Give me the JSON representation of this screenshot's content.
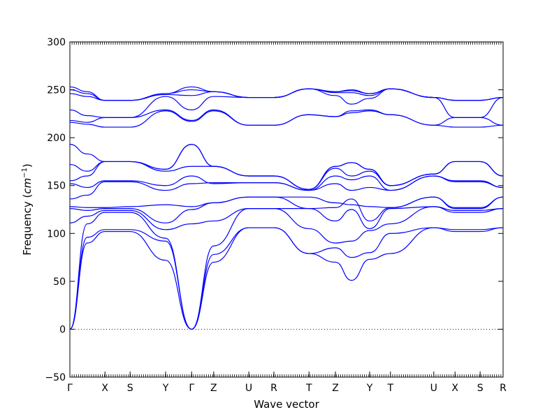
{
  "chart_data": {
    "type": "line",
    "title": "",
    "xlabel": "Wave vector",
    "ylabel": "Frequency",
    "ylabel_unit": "cm",
    "ylabel_unit_exp": "−1",
    "ylim": [
      -50,
      300
    ],
    "yticks": [
      -50,
      0,
      50,
      100,
      150,
      200,
      250,
      300
    ],
    "ytick_labels": [
      "−50",
      "0",
      "50",
      "100",
      "150",
      "200",
      "250",
      "300"
    ],
    "xlim": [
      0,
      1
    ],
    "grid": false,
    "line_color": "#0000ff",
    "zero_line_style": "dotted",
    "high_symmetry_points": [
      {
        "label": "Γ",
        "x": 0.0
      },
      {
        "label": "X",
        "x": 0.081
      },
      {
        "label": "S",
        "x": 0.139
      },
      {
        "label": "Y",
        "x": 0.221
      },
      {
        "label": "Γ",
        "x": 0.281
      },
      {
        "label": "Z",
        "x": 0.332
      },
      {
        "label": "U",
        "x": 0.413
      },
      {
        "label": "R",
        "x": 0.471
      },
      {
        "label": "T",
        "x": 0.552
      },
      {
        "label": "Z",
        "x": 0.613
      },
      {
        "label": "Y",
        "x": 0.692
      },
      {
        "label": "T",
        "x": 0.74
      },
      {
        "label": "U",
        "x": 0.84
      },
      {
        "label": "X",
        "x": 0.889
      },
      {
        "label": "S",
        "x": 0.947
      },
      {
        "label": "R",
        "x": 1.0
      }
    ],
    "series": [
      {
        "x": [
          0,
          0.04,
          0.081,
          0.139,
          0.221,
          0.281,
          0.332,
          0.413,
          0.471,
          0.552,
          0.613,
          0.65,
          0.692,
          0.74,
          0.84,
          0.889,
          0.947,
          1.0
        ],
        "values": [
          0,
          90,
          102,
          102,
          72,
          0,
          70,
          106,
          106,
          79,
          70,
          51,
          73,
          79,
          106,
          102,
          102,
          106
        ]
      },
      {
        "x": [
          0,
          0.04,
          0.081,
          0.139,
          0.221,
          0.281,
          0.332,
          0.413,
          0.471,
          0.552,
          0.613,
          0.65,
          0.692,
          0.74,
          0.84,
          0.889,
          0.947,
          1.0
        ],
        "values": [
          0,
          96,
          104,
          104,
          92,
          0,
          78,
          106,
          106,
          79,
          85,
          75,
          80,
          100,
          106,
          104,
          104,
          106
        ]
      },
      {
        "x": [
          0,
          0.04,
          0.081,
          0.139,
          0.221,
          0.281,
          0.332,
          0.413,
          0.471,
          0.552,
          0.613,
          0.65,
          0.692,
          0.74,
          0.84,
          0.889,
          0.947,
          1.0
        ],
        "values": [
          0,
          110,
          122,
          122,
          95,
          0,
          87,
          126,
          126,
          105,
          90,
          92,
          103,
          110,
          128,
          122,
          122,
          126
        ]
      },
      {
        "x": [
          0,
          0.04,
          0.081,
          0.139,
          0.221,
          0.281,
          0.332,
          0.413,
          0.471,
          0.552,
          0.613,
          0.65,
          0.692,
          0.74,
          0.84,
          0.889,
          0.947,
          1.0
        ],
        "values": [
          111,
          118,
          124,
          124,
          104,
          110,
          113,
          126,
          126,
          126,
          113,
          125,
          105,
          126,
          128,
          124,
          124,
          126
        ]
      },
      {
        "x": [
          0,
          0.04,
          0.081,
          0.139,
          0.221,
          0.281,
          0.332,
          0.413,
          0.471,
          0.552,
          0.613,
          0.65,
          0.692,
          0.74,
          0.84,
          0.889,
          0.947,
          1.0
        ],
        "values": [
          126,
          124,
          126,
          126,
          111,
          125,
          132,
          138,
          138,
          126,
          127,
          136,
          113,
          127,
          138,
          126,
          126,
          138
        ]
      },
      {
        "x": [
          0,
          0.04,
          0.081,
          0.139,
          0.221,
          0.281,
          0.332,
          0.413,
          0.471,
          0.552,
          0.613,
          0.65,
          0.692,
          0.74,
          0.84,
          0.889,
          0.947,
          1.0
        ],
        "values": [
          128,
          127,
          127,
          128,
          130,
          128,
          132,
          138,
          138,
          138,
          132,
          130,
          128,
          127,
          138,
          127,
          127,
          138
        ]
      },
      {
        "x": [
          0,
          0.04,
          0.081,
          0.139,
          0.221,
          0.281,
          0.332,
          0.413,
          0.471,
          0.552,
          0.613,
          0.65,
          0.692,
          0.74,
          0.84,
          0.889,
          0.947,
          1.0
        ],
        "values": [
          136,
          140,
          154,
          154,
          145,
          152,
          153,
          153,
          153,
          145,
          152,
          145,
          148,
          145,
          160,
          154,
          154,
          148
        ]
      },
      {
        "x": [
          0,
          0.04,
          0.081,
          0.139,
          0.221,
          0.281,
          0.332,
          0.413,
          0.471,
          0.552,
          0.613,
          0.65,
          0.692,
          0.74,
          0.84,
          0.889,
          0.947,
          1.0
        ],
        "values": [
          152,
          148,
          155,
          155,
          150,
          160,
          152,
          153,
          153,
          145,
          160,
          156,
          160,
          145,
          160,
          155,
          155,
          148
        ]
      },
      {
        "x": [
          0,
          0.04,
          0.081,
          0.139,
          0.221,
          0.281,
          0.332,
          0.413,
          0.471,
          0.552,
          0.613,
          0.65,
          0.692,
          0.74,
          0.84,
          0.889,
          0.947,
          1.0
        ],
        "values": [
          155,
          160,
          175,
          175,
          165,
          170,
          170,
          160,
          160,
          146,
          168,
          160,
          165,
          150,
          162,
          175,
          175,
          160
        ]
      },
      {
        "x": [
          0,
          0.04,
          0.081,
          0.139,
          0.221,
          0.281,
          0.332,
          0.413,
          0.471,
          0.552,
          0.613,
          0.65,
          0.692,
          0.74,
          0.84,
          0.889,
          0.947,
          1.0
        ],
        "values": [
          172,
          165,
          175,
          175,
          167,
          193,
          170,
          160,
          160,
          146,
          170,
          174,
          167,
          150,
          162,
          175,
          175,
          160
        ]
      },
      {
        "x": [
          0,
          0.04,
          0.081,
          0.139,
          0.221,
          0.281,
          0.332,
          0.413,
          0.471,
          0.552,
          0.613,
          0.65,
          0.692,
          0.74,
          0.84,
          0.889,
          0.947,
          1.0
        ],
        "values": [
          193,
          183,
          175,
          175,
          167,
          193,
          170,
          160,
          160,
          146,
          170,
          174,
          167,
          150,
          162,
          175,
          175,
          160
        ]
      },
      {
        "x": [
          0,
          0.04,
          0.081,
          0.139,
          0.221,
          0.281,
          0.332,
          0.413,
          0.471,
          0.552,
          0.613,
          0.65,
          0.692,
          0.74,
          0.84,
          0.889,
          0.947,
          1.0
        ],
        "values": [
          216,
          214,
          211,
          211,
          228,
          217,
          228,
          213,
          213,
          224,
          222,
          226,
          228,
          224,
          213,
          211,
          211,
          213
        ]
      },
      {
        "x": [
          0,
          0.04,
          0.081,
          0.139,
          0.221,
          0.281,
          0.332,
          0.413,
          0.471,
          0.552,
          0.613,
          0.65,
          0.692,
          0.74,
          0.84,
          0.889,
          0.947,
          1.0
        ],
        "values": [
          218,
          216,
          221,
          221,
          229,
          218,
          229,
          213,
          213,
          224,
          222,
          228,
          229,
          224,
          213,
          221,
          221,
          213
        ]
      },
      {
        "x": [
          0,
          0.04,
          0.081,
          0.139,
          0.221,
          0.281,
          0.332,
          0.413,
          0.471,
          0.552,
          0.613,
          0.65,
          0.692,
          0.74,
          0.84,
          0.889,
          0.947,
          1.0
        ],
        "values": [
          229,
          223,
          221,
          221,
          243,
          229,
          243,
          242,
          242,
          251,
          244,
          235,
          241,
          251,
          242,
          221,
          221,
          242
        ]
      },
      {
        "x": [
          0,
          0.04,
          0.081,
          0.139,
          0.221,
          0.281,
          0.332,
          0.413,
          0.471,
          0.552,
          0.613,
          0.65,
          0.692,
          0.74,
          0.84,
          0.889,
          0.947,
          1.0
        ],
        "values": [
          246,
          243,
          239,
          239,
          245,
          244,
          248,
          242,
          242,
          251,
          247,
          247,
          244,
          251,
          242,
          239,
          239,
          242
        ]
      },
      {
        "x": [
          0,
          0.04,
          0.081,
          0.139,
          0.221,
          0.281,
          0.332,
          0.413,
          0.471,
          0.552,
          0.613,
          0.65,
          0.692,
          0.74,
          0.84,
          0.889,
          0.947,
          1.0
        ],
        "values": [
          250,
          246,
          239,
          239,
          246,
          250,
          248,
          242,
          242,
          251,
          248,
          249,
          246,
          251,
          242,
          239,
          239,
          242
        ]
      },
      {
        "x": [
          0,
          0.04,
          0.081,
          0.139,
          0.221,
          0.281,
          0.332,
          0.413,
          0.471,
          0.552,
          0.613,
          0.65,
          0.692,
          0.74,
          0.84,
          0.889,
          0.947,
          1.0
        ],
        "values": [
          253,
          248,
          239,
          239,
          246,
          253,
          248,
          242,
          242,
          251,
          248,
          250,
          246,
          251,
          242,
          239,
          239,
          242
        ]
      }
    ]
  }
}
